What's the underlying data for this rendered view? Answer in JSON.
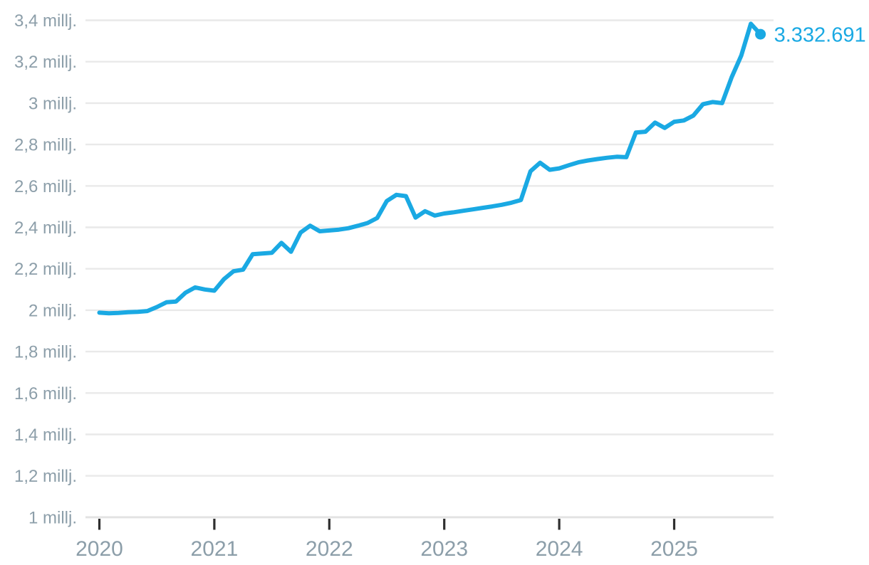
{
  "chart_data": {
    "type": "line",
    "title": "",
    "unit": "millj.",
    "grid": "horizontal",
    "legend": "none",
    "frequency": "monthly",
    "x_start": "2020-01",
    "x_end": "2025-10",
    "latest_label": "3.332.691",
    "latest_value_millions": 3.332691,
    "ylim": [
      1.0,
      3.4
    ],
    "y_axis": {
      "tick_values": [
        3.4,
        3.2,
        3.0,
        2.8,
        2.6,
        2.4,
        2.2,
        2.0,
        1.8,
        1.6,
        1.4,
        1.2,
        1.0
      ],
      "tick_labels": [
        "3,4 millj.",
        "3,2 millj.",
        "3 millj.",
        "2,8 millj.",
        "2,6 millj.",
        "2,4 millj.",
        "2,2 millj.",
        "2 millj.",
        "1,8 millj.",
        "1,6 millj.",
        "1,4 millj.",
        "1,2 millj.",
        "1 millj."
      ]
    },
    "x_axis": {
      "tick_values": [
        2020,
        2021,
        2022,
        2023,
        2024,
        2025
      ],
      "tick_labels": [
        "2020",
        "2021",
        "2022",
        "2023",
        "2024",
        "2025"
      ]
    },
    "series": [
      {
        "name": "value",
        "color": "#1aa9e3",
        "values_millions": [
          1.988,
          1.985,
          1.987,
          1.99,
          1.992,
          1.996,
          2.015,
          2.038,
          2.042,
          2.085,
          2.11,
          2.1,
          2.094,
          2.15,
          2.188,
          2.196,
          2.27,
          2.274,
          2.277,
          2.325,
          2.282,
          2.375,
          2.408,
          2.381,
          2.385,
          2.389,
          2.396,
          2.408,
          2.421,
          2.445,
          2.527,
          2.557,
          2.551,
          2.447,
          2.478,
          2.457,
          2.467,
          2.473,
          2.48,
          2.487,
          2.494,
          2.501,
          2.509,
          2.519,
          2.532,
          2.671,
          2.712,
          2.678,
          2.685,
          2.7,
          2.714,
          2.723,
          2.73,
          2.736,
          2.741,
          2.739,
          2.858,
          2.862,
          2.906,
          2.88,
          2.91,
          2.916,
          2.94,
          2.995,
          3.005,
          3.0,
          3.125,
          3.23,
          3.383,
          3.332691
        ]
      }
    ],
    "colors": {
      "line": "#1aa9e3",
      "marker": "#1aa9e3",
      "latest_label_text": "#1aa9e3",
      "axis_label_text": "#8c9ea9",
      "gridline": "#e9e9e9",
      "axis_line": "#e3e3e3",
      "tick_mark": "#2f2f2f",
      "background": "#ffffff"
    }
  }
}
